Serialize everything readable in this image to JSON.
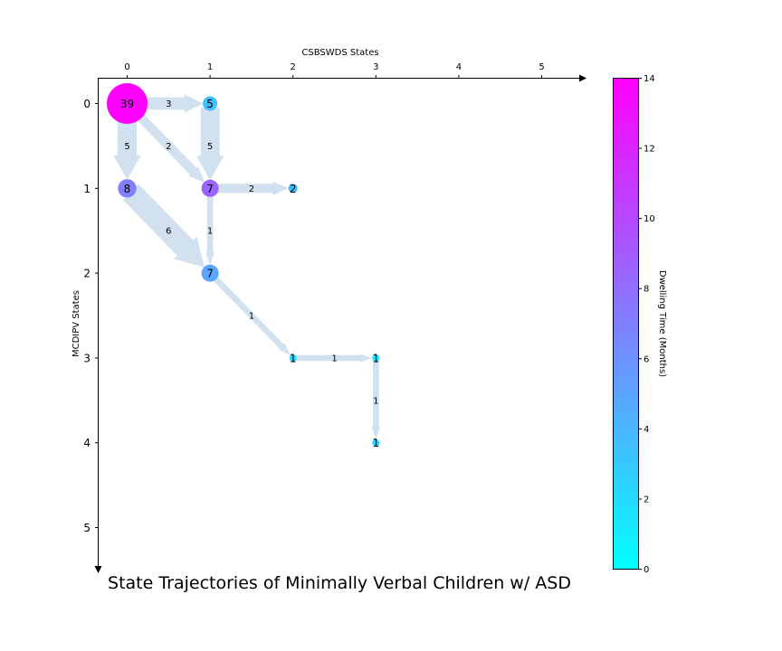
{
  "chart_data": {
    "type": "network",
    "title": "State Trajectories of Minimally Verbal Children w/ ASD",
    "xlabel": "CSBSWDS States",
    "ylabel": "MCDIPV States",
    "x_ticks": [
      "0",
      "1",
      "2",
      "3",
      "4",
      "5"
    ],
    "y_ticks": [
      "0",
      "1",
      "2",
      "3",
      "4",
      "5"
    ],
    "xlim": [
      -0.35,
      5.5
    ],
    "ylim": [
      -0.3,
      5.5
    ],
    "nodes": [
      {
        "x": 0,
        "y": 0,
        "count": 39,
        "dwell": 14
      },
      {
        "x": 1,
        "y": 0,
        "count": 5,
        "dwell": 3.5
      },
      {
        "x": 0,
        "y": 1,
        "count": 8,
        "dwell": 7
      },
      {
        "x": 1,
        "y": 1,
        "count": 7,
        "dwell": 8.5
      },
      {
        "x": 2,
        "y": 1,
        "count": 2,
        "dwell": 3.5
      },
      {
        "x": 1,
        "y": 2,
        "count": 7,
        "dwell": 5
      },
      {
        "x": 2,
        "y": 3,
        "count": 1,
        "dwell": 2
      },
      {
        "x": 3,
        "y": 3,
        "count": 1,
        "dwell": 1.5
      },
      {
        "x": 3,
        "y": 4,
        "count": 1,
        "dwell": 2.5
      }
    ],
    "edges": [
      {
        "from": [
          0,
          0
        ],
        "to": [
          1,
          0
        ],
        "count": 3
      },
      {
        "from": [
          0,
          0
        ],
        "to": [
          0,
          1
        ],
        "count": 5
      },
      {
        "from": [
          0,
          0
        ],
        "to": [
          1,
          1
        ],
        "count": 2
      },
      {
        "from": [
          1,
          0
        ],
        "to": [
          1,
          1
        ],
        "count": 5
      },
      {
        "from": [
          1,
          1
        ],
        "to": [
          2,
          1
        ],
        "count": 2
      },
      {
        "from": [
          0,
          1
        ],
        "to": [
          1,
          2
        ],
        "count": 6
      },
      {
        "from": [
          1,
          1
        ],
        "to": [
          1,
          2
        ],
        "count": 1
      },
      {
        "from": [
          1,
          2
        ],
        "to": [
          2,
          3
        ],
        "count": 1
      },
      {
        "from": [
          2,
          3
        ],
        "to": [
          3,
          3
        ],
        "count": 1
      },
      {
        "from": [
          3,
          3
        ],
        "to": [
          3,
          4
        ],
        "count": 1
      }
    ],
    "colorbar": {
      "label": "Dwelling Time (Months)",
      "range": [
        0,
        14
      ],
      "ticks": [
        "0",
        "2",
        "4",
        "6",
        "8",
        "10",
        "12",
        "14"
      ],
      "colormap": "cool",
      "color_low": "#00ffff",
      "color_high": "#ff00ff"
    },
    "edge_color": "#d2e1f0"
  }
}
